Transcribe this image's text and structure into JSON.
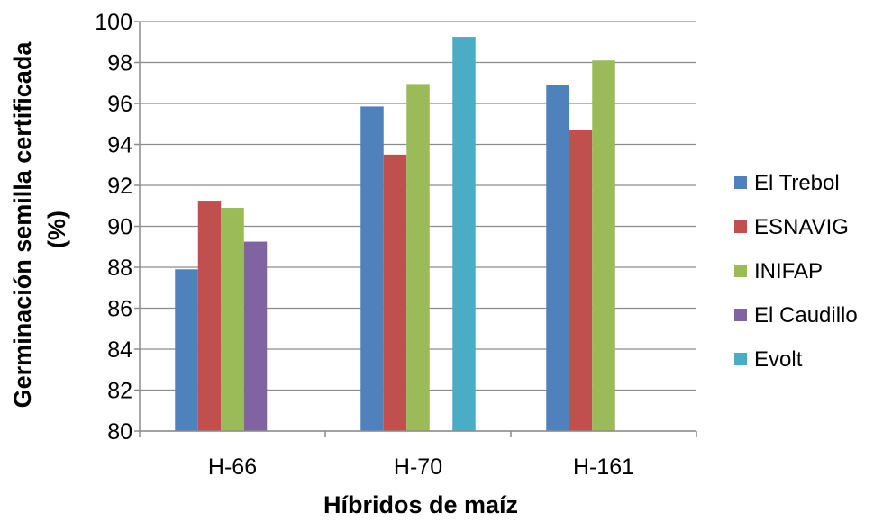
{
  "chart_data": {
    "type": "bar",
    "title": "",
    "xlabel": "Híbridos de maíz",
    "ylabel_lines": [
      "Germinación semilla certificada",
      "(%)"
    ],
    "categories": [
      "H-66",
      "H-70",
      "H-161"
    ],
    "ylim": [
      80,
      100
    ],
    "ytick_step": 2,
    "yticks": [
      "80",
      "82",
      "84",
      "86",
      "88",
      "90",
      "92",
      "94",
      "96",
      "98",
      "100"
    ],
    "grid": true,
    "legend_position": "right",
    "series": [
      {
        "name": "El Trebol",
        "color": "#4f81bd",
        "values": [
          87.9,
          95.85,
          96.9
        ]
      },
      {
        "name": "ESNAVIG",
        "color": "#c0504d",
        "values": [
          91.25,
          93.5,
          94.7
        ]
      },
      {
        "name": "INIFAP",
        "color": "#9bbb59",
        "values": [
          90.9,
          96.95,
          98.1
        ]
      },
      {
        "name": "El Caudillo",
        "color": "#8064a2",
        "values": [
          89.25,
          null,
          null
        ]
      },
      {
        "name": "Evolt",
        "color": "#4bacc6",
        "values": [
          null,
          99.25,
          null
        ]
      }
    ]
  }
}
